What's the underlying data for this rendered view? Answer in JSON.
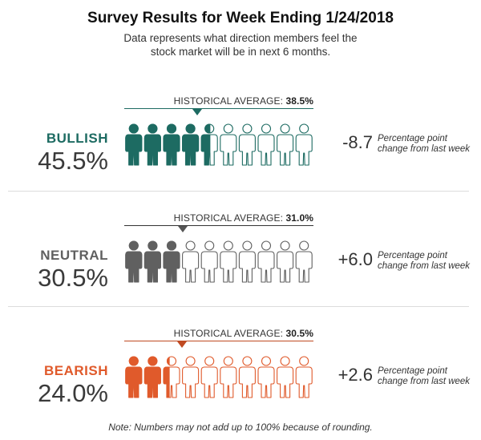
{
  "chart_data": {
    "type": "pictograph",
    "title": "Survey Results for Week Ending 1/24/2018",
    "subtitle": "Data represents what direction members feel the stock market will be in next 6 months.",
    "historical_label": "HISTORICAL AVERAGE: ",
    "change_text": "Percentage point change from last week",
    "note": "Note: Numbers may not add up to 100% because of rounding.",
    "icons_total": 10,
    "units_per_icon": 10,
    "categories": [
      {
        "name": "BULLISH",
        "value": 45.5,
        "value_label": "45.5%",
        "historical_average": 38.5,
        "historical_label": "38.5%",
        "change": -8.7,
        "change_label": "-8.7",
        "color": "#1d6b62"
      },
      {
        "name": "NEUTRAL",
        "value": 30.5,
        "value_label": "30.5%",
        "historical_average": 31.0,
        "historical_label": "31.0%",
        "change": 6.0,
        "change_label": "+6.0",
        "color": "#606060"
      },
      {
        "name": "BEARISH",
        "value": 24.0,
        "value_label": "24.0%",
        "historical_average": 30.5,
        "historical_label": "30.5%",
        "change": 2.6,
        "change_label": "+2.6",
        "color": "#e05a2b"
      }
    ]
  }
}
